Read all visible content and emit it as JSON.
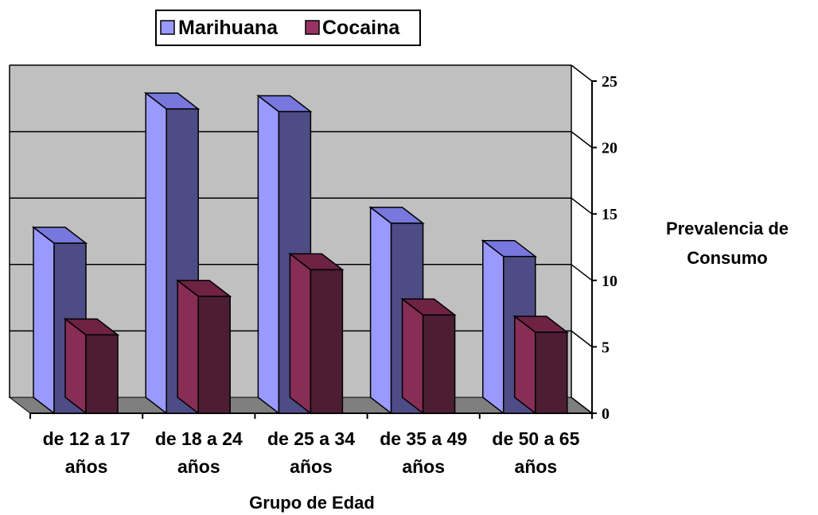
{
  "chart_data": {
    "type": "bar",
    "categories": [
      [
        "de 12 a 17",
        "años"
      ],
      [
        "de 18 a 24",
        "años"
      ],
      [
        "de 25 a 34",
        "años"
      ],
      [
        "de 35 a 49",
        "años"
      ],
      [
        "de 50 a 65",
        "años"
      ]
    ],
    "series": [
      {
        "name": "Marihuana",
        "values": [
          12.8,
          22.9,
          22.7,
          14.3,
          11.8
        ]
      },
      {
        "name": "Cocaina",
        "values": [
          5.9,
          8.8,
          10.8,
          7.4,
          6.1
        ]
      }
    ],
    "xlabel": "Grupo de Edad",
    "ylabel": [
      "Prevalencia de",
      "Consumo"
    ],
    "ylim": [
      0,
      25
    ],
    "yticks": [
      "0",
      "5",
      "10",
      "15",
      "20",
      "25"
    ],
    "grid": true,
    "legend_position": "top-center",
    "colors": {
      "Marihuana": {
        "front": "#4e4c86",
        "side": "#9999ff",
        "top": "#7777dd"
      },
      "Cocaina": {
        "front": "#4c1d33",
        "side": "#882d55",
        "top": "#6e2244"
      },
      "plot_back": "#c0c0c0",
      "floor": "#7f7f7f",
      "legend_marihuana": "#9999ff",
      "legend_cocaina": "#993366"
    }
  }
}
